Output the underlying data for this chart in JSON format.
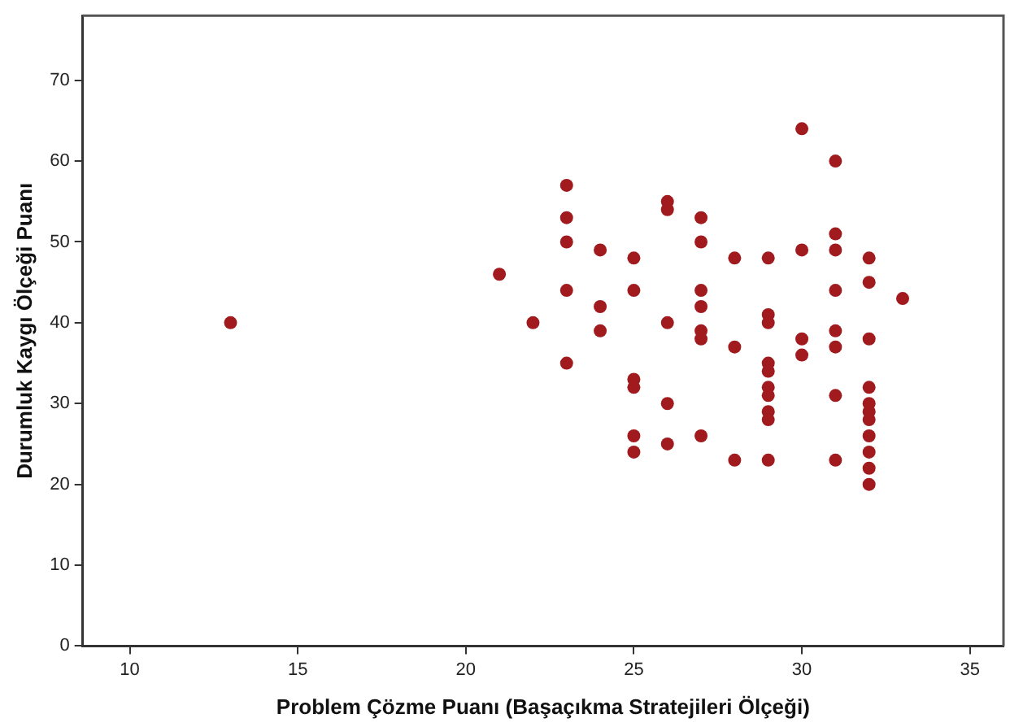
{
  "chart_data": {
    "type": "scatter",
    "xlabel": "Problem Çözme Puanı (Başaçıkma Stratejileri Ölçeği)",
    "ylabel": "Durumluk Kaygı Ölçeği Puanı",
    "x": [
      13,
      21,
      22,
      23,
      23,
      23,
      23,
      23,
      24,
      24,
      24,
      25,
      25,
      25,
      25,
      25,
      25,
      26,
      26,
      26,
      26,
      26,
      27,
      27,
      27,
      27,
      27,
      27,
      27,
      28,
      28,
      28,
      29,
      29,
      29,
      29,
      29,
      29,
      29,
      29,
      29,
      29,
      30,
      30,
      30,
      30,
      31,
      31,
      31,
      31,
      31,
      31,
      31,
      31,
      32,
      32,
      32,
      32,
      32,
      32,
      32,
      32,
      32,
      32,
      32,
      33
    ],
    "values": [
      40,
      46,
      40,
      57,
      53,
      50,
      44,
      35,
      49,
      42,
      39,
      48,
      44,
      33,
      32,
      26,
      24,
      55,
      54,
      40,
      30,
      25,
      53,
      50,
      44,
      42,
      39,
      38,
      26,
      48,
      37,
      23,
      48,
      41,
      40,
      35,
      34,
      32,
      31,
      29,
      28,
      23,
      64,
      49,
      38,
      36,
      60,
      51,
      49,
      44,
      39,
      37,
      31,
      23,
      48,
      45,
      38,
      32,
      30,
      29,
      28,
      26,
      24,
      22,
      20,
      43
    ],
    "color": "#a01a1e",
    "marker": "circle",
    "grid": false,
    "legend": false,
    "xlim": [
      8.6,
      36
    ],
    "xticks": [
      10,
      15,
      20,
      25,
      30,
      35
    ],
    "ylim": [
      0,
      78
    ],
    "yticks": [
      0,
      10,
      20,
      30,
      40,
      50,
      60,
      70
    ]
  }
}
